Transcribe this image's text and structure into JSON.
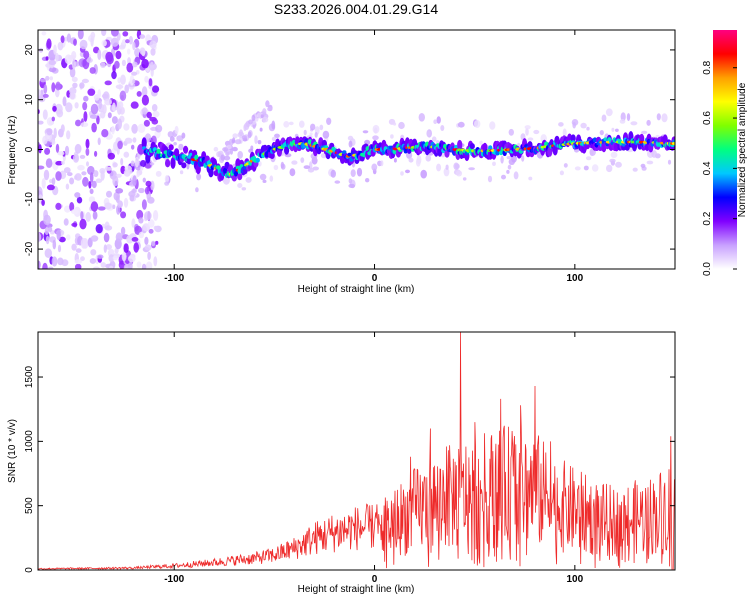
{
  "title": "S233.2026.004.01.29.G14",
  "chart_data": [
    {
      "type": "heatmap",
      "xlabel": "Height of straight line (km)",
      "ylabel": "Frequency (Hz)",
      "xlim": [
        -168,
        150
      ],
      "ylim": [
        -24,
        24
      ],
      "x_ticks": [
        -100,
        0,
        100
      ],
      "y_ticks": [
        -20,
        -10,
        0,
        10,
        20
      ],
      "grid": false,
      "ridge": {
        "x": [
          -115,
          -105,
          -95,
          -85,
          -78,
          -72,
          -65,
          -58,
          -50,
          -42,
          -35,
          -28,
          -20,
          -12,
          -5,
          0,
          8,
          15,
          22,
          30,
          40,
          50,
          60,
          70,
          80,
          90,
          100,
          110,
          120,
          130,
          140,
          148
        ],
        "y": [
          0,
          -1,
          -1.5,
          -2.5,
          -4,
          -5,
          -3.5,
          -1.5,
          0,
          1,
          1.2,
          0.5,
          -0.5,
          -1.5,
          -0.5,
          0,
          0,
          0.3,
          0.5,
          0.5,
          0,
          -0.3,
          -0.2,
          0,
          0.2,
          0.8,
          1.2,
          1.4,
          1.5,
          1.5,
          1.4,
          1.2
        ]
      },
      "colorbar": {
        "label": "Normalized spectral amplitude",
        "ticks": [
          "0.0",
          "0.2",
          "0.4",
          "0.6",
          "0.8"
        ],
        "range": [
          0,
          0.95
        ],
        "colors": [
          "#ffffff",
          "#c8a0ff",
          "#8000ff",
          "#0000ff",
          "#00c8ff",
          "#00ff80",
          "#80ff00",
          "#ffff00",
          "#ffa000",
          "#ff0000",
          "#ff0080"
        ]
      }
    },
    {
      "type": "line",
      "xlabel": "Height of straight line (km)",
      "ylabel": "SNR (10 * v/v)",
      "xlim": [
        -168,
        150
      ],
      "ylim": [
        0,
        1850
      ],
      "x_ticks": [
        -100,
        0,
        100
      ],
      "y_ticks": [
        0,
        500,
        1000,
        1500
      ],
      "color": "#ee2a2a",
      "envelope": {
        "x": [
          -168,
          -140,
          -120,
          -100,
          -80,
          -60,
          -50,
          -40,
          -30,
          -20,
          -10,
          0,
          10,
          20,
          30,
          40,
          50,
          60,
          70,
          80,
          90,
          100,
          110,
          120,
          130,
          140,
          150
        ],
        "y": [
          15,
          20,
          25,
          50,
          90,
          140,
          180,
          260,
          380,
          450,
          500,
          520,
          650,
          800,
          900,
          1000,
          1050,
          1100,
          1150,
          1100,
          900,
          800,
          700,
          650,
          700,
          750,
          900
        ]
      },
      "peaks": [
        {
          "x": 43,
          "y": 1850
        },
        {
          "x": 80,
          "y": 1430
        },
        {
          "x": 63,
          "y": 1330
        },
        {
          "x": 73,
          "y": 1280
        },
        {
          "x": 50,
          "y": 1150
        },
        {
          "x": 28,
          "y": 1100
        },
        {
          "x": 148,
          "y": 1040
        },
        {
          "x": 88,
          "y": 1000
        },
        {
          "x": 36,
          "y": 960
        },
        {
          "x": 18,
          "y": 880
        }
      ]
    }
  ]
}
